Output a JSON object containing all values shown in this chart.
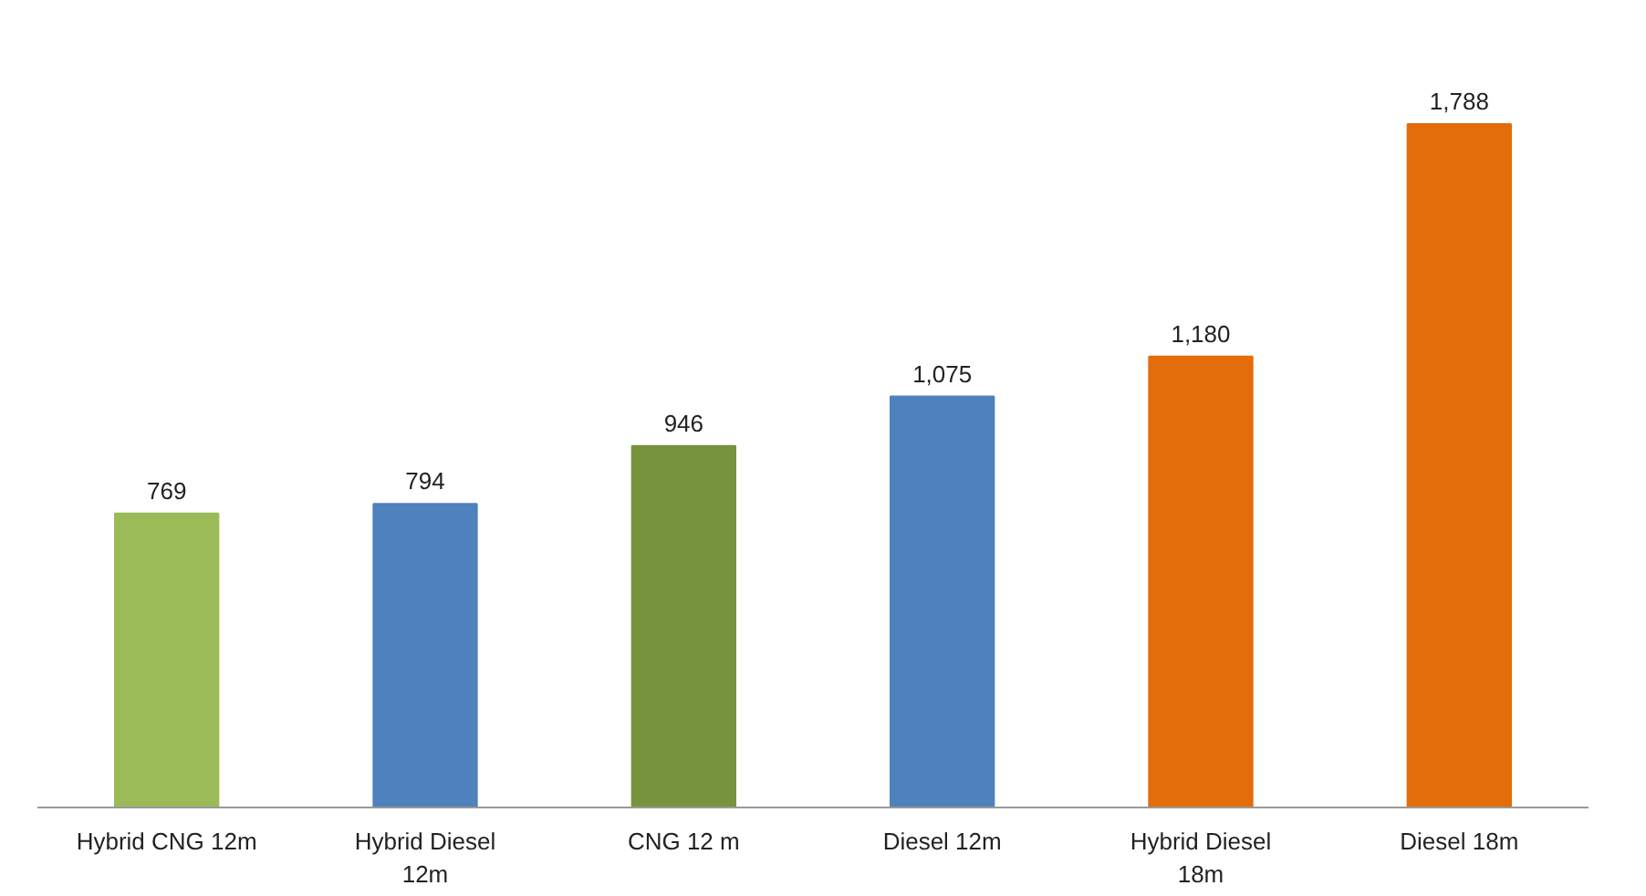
{
  "chart_data": {
    "type": "bar",
    "categories": [
      "Hybrid CNG 12m",
      "Hybrid Diesel 12m",
      "CNG 12 m",
      "Diesel 12m",
      "Hybrid Diesel 18m",
      "Diesel 18m"
    ],
    "values": [
      769,
      794,
      946,
      1075,
      1180,
      1788
    ],
    "colors": [
      "#9bbb59",
      "#4f81bd",
      "#77933c",
      "#4f81bd",
      "#e46c0a",
      "#e46c0a"
    ],
    "value_labels": [
      "769",
      "794",
      "946",
      "1,075",
      "1,180",
      "1,788"
    ],
    "grid": false
  }
}
